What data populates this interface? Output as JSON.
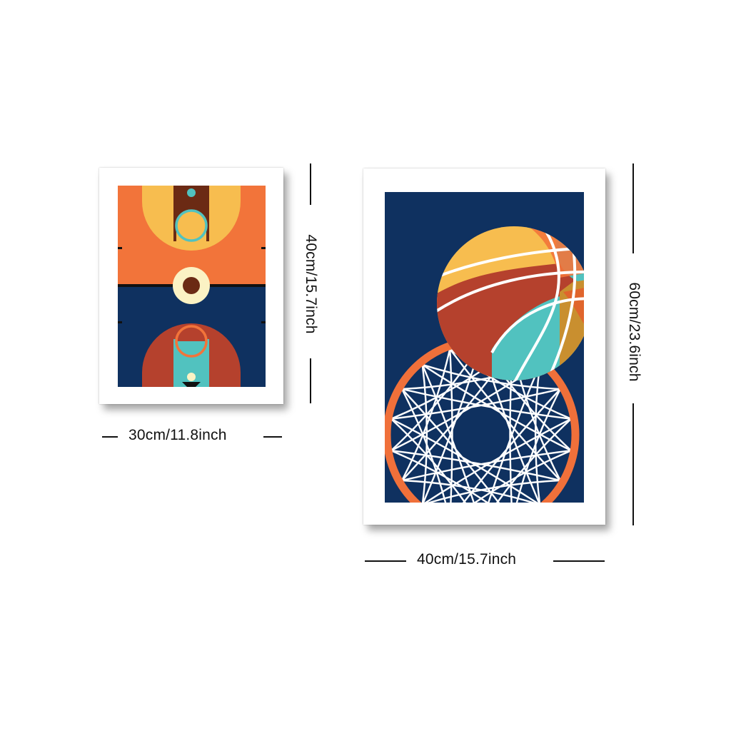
{
  "dimensions": {
    "small_width": "30cm/11.8inch",
    "small_height": "40cm/15.7inch",
    "large_width": "40cm/15.7inch",
    "large_height": "60cm/23.6inch"
  },
  "colors": {
    "navy": "#0f3160",
    "orange": "#f2743a",
    "yellow": "#f7bd4f",
    "brick": "#b5412d",
    "teal": "#51c2bf",
    "brown": "#6b2a14",
    "cream": "#fbf2c4",
    "gold": "#c98f2f",
    "hoop": "#f0703a"
  }
}
